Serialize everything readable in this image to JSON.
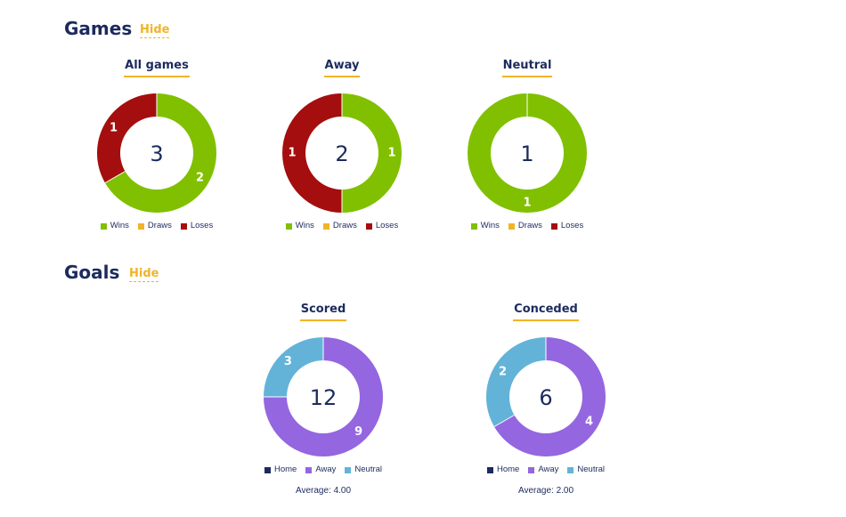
{
  "games": {
    "title": "Games",
    "hide_label": "Hide"
  },
  "goals": {
    "title": "Goals",
    "hide_label": "Hide"
  },
  "chart_data": [
    {
      "id": "all-games",
      "type": "pie",
      "title": "All games",
      "total": "3",
      "categories": [
        "Wins",
        "Draws",
        "Loses"
      ],
      "values": [
        2,
        0,
        1
      ],
      "colors": [
        "#80c000",
        "#f0b429",
        "#a50e0e"
      ]
    },
    {
      "id": "away",
      "type": "pie",
      "title": "Away",
      "total": "2",
      "categories": [
        "Wins",
        "Draws",
        "Loses"
      ],
      "values": [
        1,
        0,
        1
      ],
      "colors": [
        "#80c000",
        "#f0b429",
        "#a50e0e"
      ]
    },
    {
      "id": "neutral",
      "type": "pie",
      "title": "Neutral",
      "total": "1",
      "categories": [
        "Wins",
        "Draws",
        "Loses"
      ],
      "values": [
        1,
        0,
        0
      ],
      "colors": [
        "#80c000",
        "#f0b429",
        "#a50e0e"
      ]
    },
    {
      "id": "scored",
      "type": "pie",
      "title": "Scored",
      "total": "12",
      "categories": [
        "Home",
        "Away",
        "Neutral"
      ],
      "values": [
        0,
        9,
        3
      ],
      "colors": [
        "#1c2b5e",
        "#9466e0",
        "#63b3d8"
      ],
      "average": "Average: 4.00"
    },
    {
      "id": "conceded",
      "type": "pie",
      "title": "Conceded",
      "total": "6",
      "categories": [
        "Home",
        "Away",
        "Neutral"
      ],
      "values": [
        0,
        4,
        2
      ],
      "colors": [
        "#1c2b5e",
        "#9466e0",
        "#63b3d8"
      ],
      "average": "Average: 2.00"
    }
  ]
}
